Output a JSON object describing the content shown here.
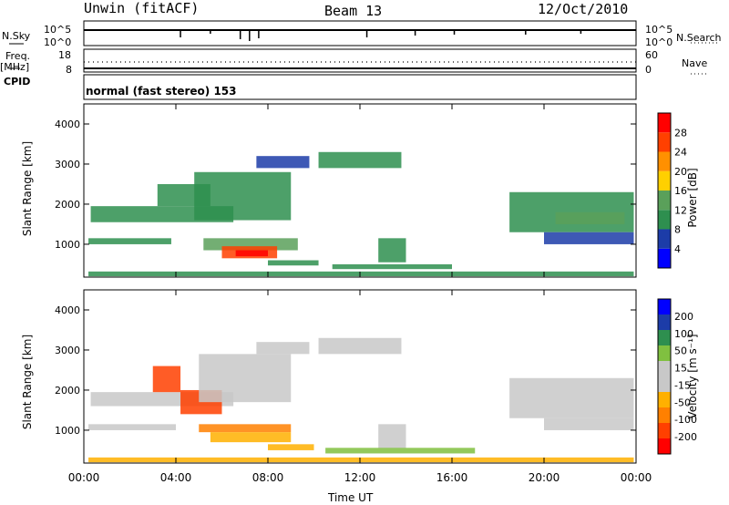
{
  "header": {
    "station": "Unwin (fitACF)",
    "beam": "Beam 13",
    "date": "12/Oct/2010"
  },
  "strip_panels": {
    "nsky_label": "N.Sky",
    "nsky_ticks": [
      "10^5",
      "10^0"
    ],
    "nsearch_label": "N.Search",
    "nsearch_ticks": [
      "10^5",
      "10^0"
    ],
    "freq_label": "Freq.",
    "freq_unit": "[MHz]",
    "freq_ticks": [
      "18",
      "8"
    ],
    "nave_label": "Nave",
    "nave_ticks": [
      "60",
      "0"
    ],
    "cpid_label": "CPID",
    "cpid_text": "normal (fast stereo) 153"
  },
  "chart_data": [
    {
      "type": "heatmap",
      "name": "power",
      "ylabel": "Slant Range [km]",
      "yticks": [
        "4000",
        "3000",
        "2000",
        "1000"
      ],
      "ylim": [
        180,
        4500
      ],
      "xlim": [
        0,
        24
      ],
      "colorbar_label": "Power [dB]",
      "colorbar_ticks": [
        "28",
        "24",
        "20",
        "16",
        "12",
        "8",
        "4"
      ],
      "colorbar_colors": [
        "#0000ff",
        "#1c3ca8",
        "#2e8f4f",
        "#5aa05a",
        "#ffd000",
        "#ff9000",
        "#ff4000",
        "#ff0000"
      ],
      "regions": [
        {
          "t0": 0.2,
          "t1": 3.8,
          "r0": 1000,
          "r1": 1150,
          "value": 10
        },
        {
          "t0": 0.3,
          "t1": 6.5,
          "r0": 1550,
          "r1": 1950,
          "value": 8
        },
        {
          "t0": 3.2,
          "t1": 5.5,
          "r0": 1950,
          "r1": 2500,
          "value": 10
        },
        {
          "t0": 4.8,
          "t1": 9.0,
          "r0": 1600,
          "r1": 2800,
          "value": 8
        },
        {
          "t0": 5.2,
          "t1": 9.3,
          "r0": 850,
          "r1": 1150,
          "value": 14
        },
        {
          "t0": 6.0,
          "t1": 8.4,
          "r0": 650,
          "r1": 950,
          "value": 24
        },
        {
          "t0": 6.6,
          "t1": 8.0,
          "r0": 700,
          "r1": 850,
          "value": 28
        },
        {
          "t0": 8.0,
          "t1": 10.2,
          "r0": 470,
          "r1": 600,
          "value": 8
        },
        {
          "t0": 7.5,
          "t1": 9.8,
          "r0": 2900,
          "r1": 3200,
          "value": 6
        },
        {
          "t0": 10.2,
          "t1": 13.8,
          "r0": 2900,
          "r1": 3300,
          "value": 8
        },
        {
          "t0": 12.8,
          "t1": 14.0,
          "r0": 550,
          "r1": 1150,
          "value": 8
        },
        {
          "t0": 10.8,
          "t1": 16.0,
          "r0": 380,
          "r1": 500,
          "value": 8
        },
        {
          "t0": 18.5,
          "t1": 23.9,
          "r0": 1300,
          "r1": 2300,
          "value": 8
        },
        {
          "t0": 20.5,
          "t1": 23.5,
          "r0": 1500,
          "r1": 1800,
          "value": 12
        },
        {
          "t0": 20.0,
          "t1": 23.9,
          "r0": 1000,
          "r1": 1300,
          "value": 6
        },
        {
          "t0": 0.2,
          "t1": 23.9,
          "r0": 200,
          "r1": 320,
          "value": 8
        }
      ]
    },
    {
      "type": "heatmap",
      "name": "velocity",
      "ylabel": "Slant Range [km]",
      "yticks": [
        "4000",
        "3000",
        "2000",
        "1000"
      ],
      "ylim": [
        180,
        4500
      ],
      "xlim": [
        0,
        24
      ],
      "xticks": [
        "00:00",
        "04:00",
        "08:00",
        "12:00",
        "16:00",
        "20:00",
        "00:00"
      ],
      "xlabel": "Time UT",
      "colorbar_label": "Velocity [m s⁻¹]",
      "colorbar_ticks": [
        "200",
        "100",
        "50",
        "15",
        "-15",
        "-50",
        "-100",
        "-200"
      ],
      "colorbar_colors": [
        "#ff0000",
        "#ff4000",
        "#ff8000",
        "#ffb000",
        "#c8c8c8",
        "#c8c8c8",
        "#80c040",
        "#2e8f4f",
        "#1c3ca8",
        "#0000ff"
      ],
      "regions": [
        {
          "t0": 0.2,
          "t1": 4.0,
          "r0": 1000,
          "r1": 1150,
          "value": -5
        },
        {
          "t0": 0.3,
          "t1": 6.5,
          "r0": 1600,
          "r1": 1950,
          "value": 0
        },
        {
          "t0": 3.0,
          "t1": 4.2,
          "r0": 1950,
          "r1": 2600,
          "value": -200
        },
        {
          "t0": 4.2,
          "t1": 6.0,
          "r0": 1400,
          "r1": 2000,
          "value": -200
        },
        {
          "t0": 5.0,
          "t1": 9.0,
          "r0": 1700,
          "r1": 2900,
          "value": 0
        },
        {
          "t0": 5.0,
          "t1": 9.0,
          "r0": 950,
          "r1": 1150,
          "value": -120
        },
        {
          "t0": 5.5,
          "t1": 9.0,
          "r0": 700,
          "r1": 950,
          "value": -70
        },
        {
          "t0": 8.0,
          "t1": 10.0,
          "r0": 500,
          "r1": 650,
          "value": -50
        },
        {
          "t0": 7.5,
          "t1": 9.8,
          "r0": 2900,
          "r1": 3200,
          "value": 0
        },
        {
          "t0": 10.2,
          "t1": 13.8,
          "r0": 2900,
          "r1": 3300,
          "value": 0
        },
        {
          "t0": 12.8,
          "t1": 14.0,
          "r0": 550,
          "r1": 1150,
          "value": 0
        },
        {
          "t0": 10.5,
          "t1": 17.0,
          "r0": 420,
          "r1": 560,
          "value": 20
        },
        {
          "t0": 18.5,
          "t1": 23.9,
          "r0": 1300,
          "r1": 2300,
          "value": 0
        },
        {
          "t0": 20.0,
          "t1": 23.9,
          "r0": 1000,
          "r1": 1300,
          "value": 0
        },
        {
          "t0": 0.2,
          "t1": 23.9,
          "r0": 200,
          "r1": 320,
          "value": -60
        }
      ]
    }
  ]
}
